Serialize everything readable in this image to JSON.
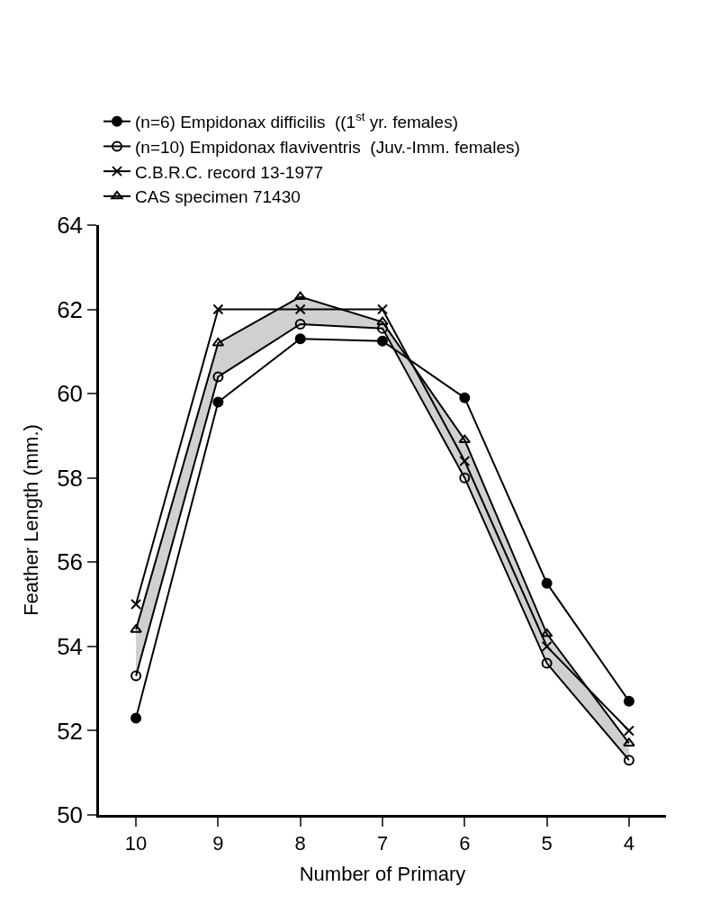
{
  "chart_data": {
    "type": "line",
    "xlabel": "Number of Primary",
    "ylabel": "Feather Length (mm.)",
    "categories": [
      "10",
      "9",
      "8",
      "7",
      "6",
      "5",
      "4"
    ],
    "series": [
      {
        "name": "(n=6) Empidonax difficilis  ((1$^{st}$ yr. females)",
        "color": "#000000",
        "marker": "circle",
        "values": [
          52.3,
          59.8,
          61.3,
          61.25,
          59.9,
          55.5,
          52.7
        ]
      },
      {
        "name": "(n=10) Empidonax flaviventris  (Juv.-Imm. females)",
        "color": "#000000",
        "marker": "circle-open",
        "values": [
          53.3,
          60.4,
          61.65,
          61.55,
          58.0,
          53.6,
          51.3
        ],
        "lower": [
          53.3,
          60.4,
          61.65,
          61.55,
          58.0,
          53.6,
          51.3
        ],
        "upper": [
          54.4,
          61.2,
          62.3,
          61.7,
          58.9,
          54.3,
          51.7
        ]
      },
      {
        "name": "C.B.R.C. record 13-1977",
        "color": "#000000",
        "marker": "x",
        "values": [
          55.0,
          62.0,
          62.0,
          62.0,
          58.4,
          54.0,
          52.0
        ]
      },
      {
        "name": "CAS specimen 71430",
        "color": "#000000",
        "marker": "triangle-up-open",
        "values": [
          54.4,
          61.2,
          62.3,
          61.7,
          58.9,
          54.3,
          51.7
        ]
      }
    ],
    "ylim": [
      50,
      64
    ],
    "yticks": [
      50,
      52,
      54,
      56,
      58,
      60,
      62,
      64
    ],
    "legend": "top",
    "line_style": "solid"
  }
}
